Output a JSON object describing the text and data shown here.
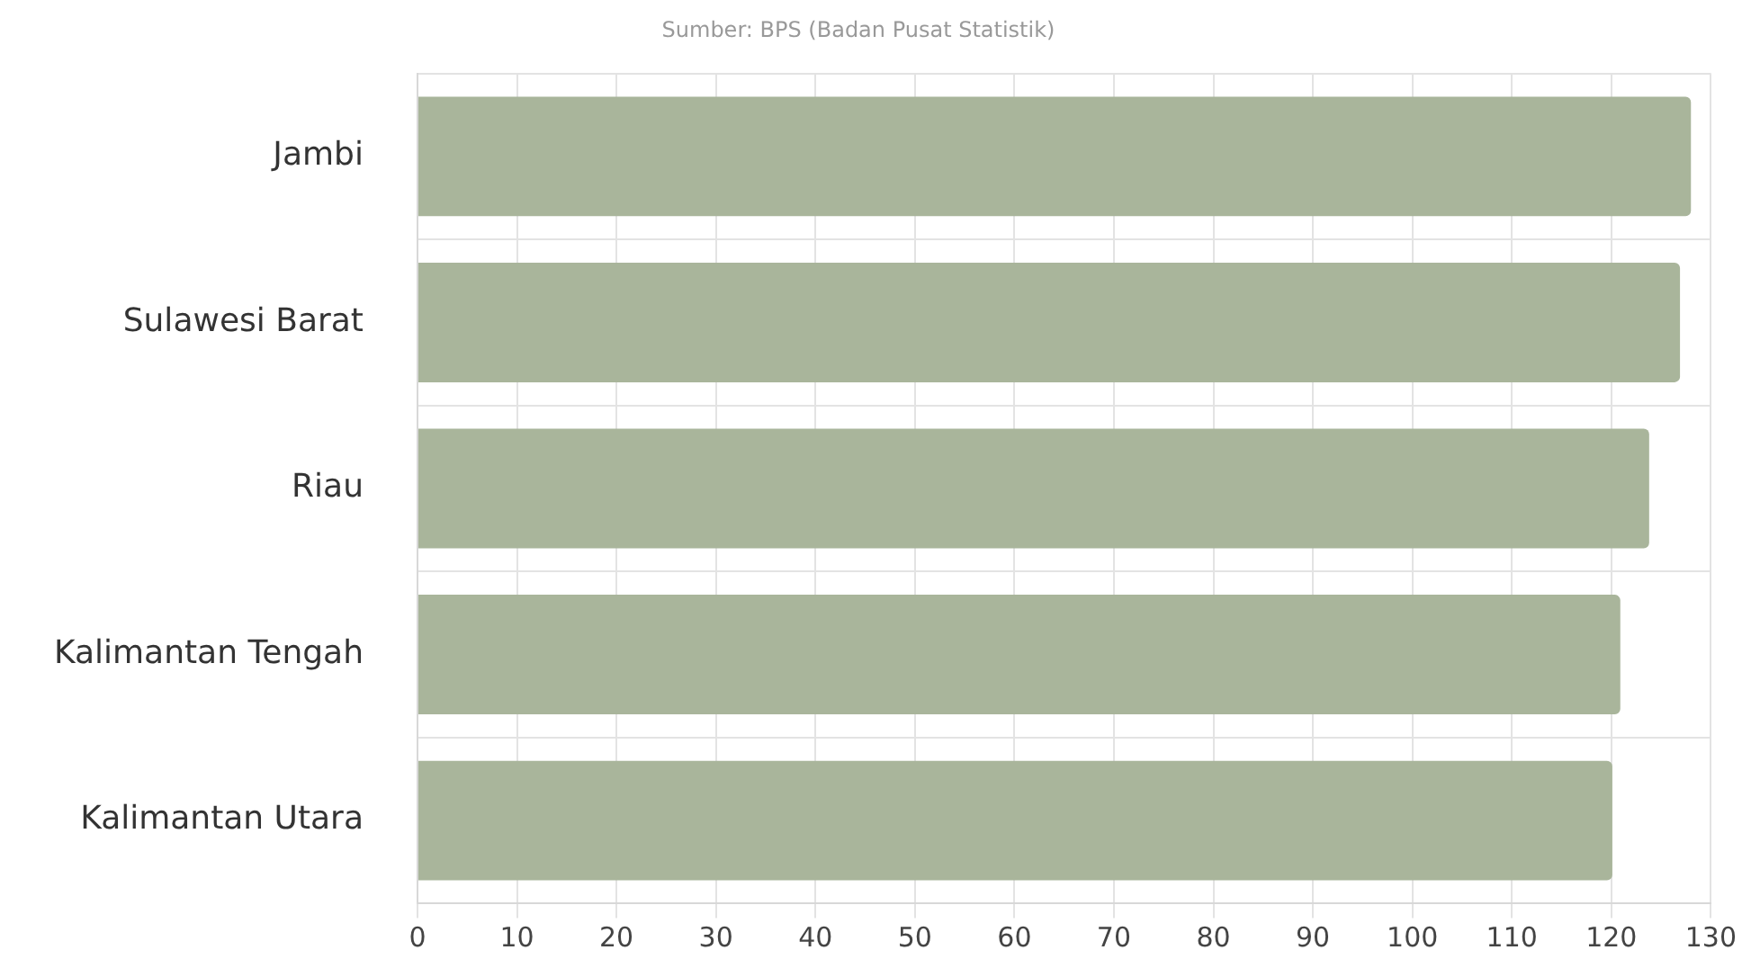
{
  "chart_data": {
    "type": "bar",
    "orientation": "horizontal",
    "subtitle": "Sumber: BPS (Badan Pusat Statistik)",
    "categories": [
      "Jambi",
      "Sulawesi Barat",
      "Riau",
      "Kalimantan Tengah",
      "Kalimantan Utara"
    ],
    "values": [
      128.0,
      126.9,
      123.8,
      120.9,
      120.1
    ],
    "color": "#a9b59b",
    "xlim": [
      0,
      130
    ],
    "xticks": [
      0,
      10,
      20,
      30,
      40,
      50,
      60,
      70,
      80,
      90,
      100,
      110,
      120,
      130
    ],
    "grid": true
  }
}
